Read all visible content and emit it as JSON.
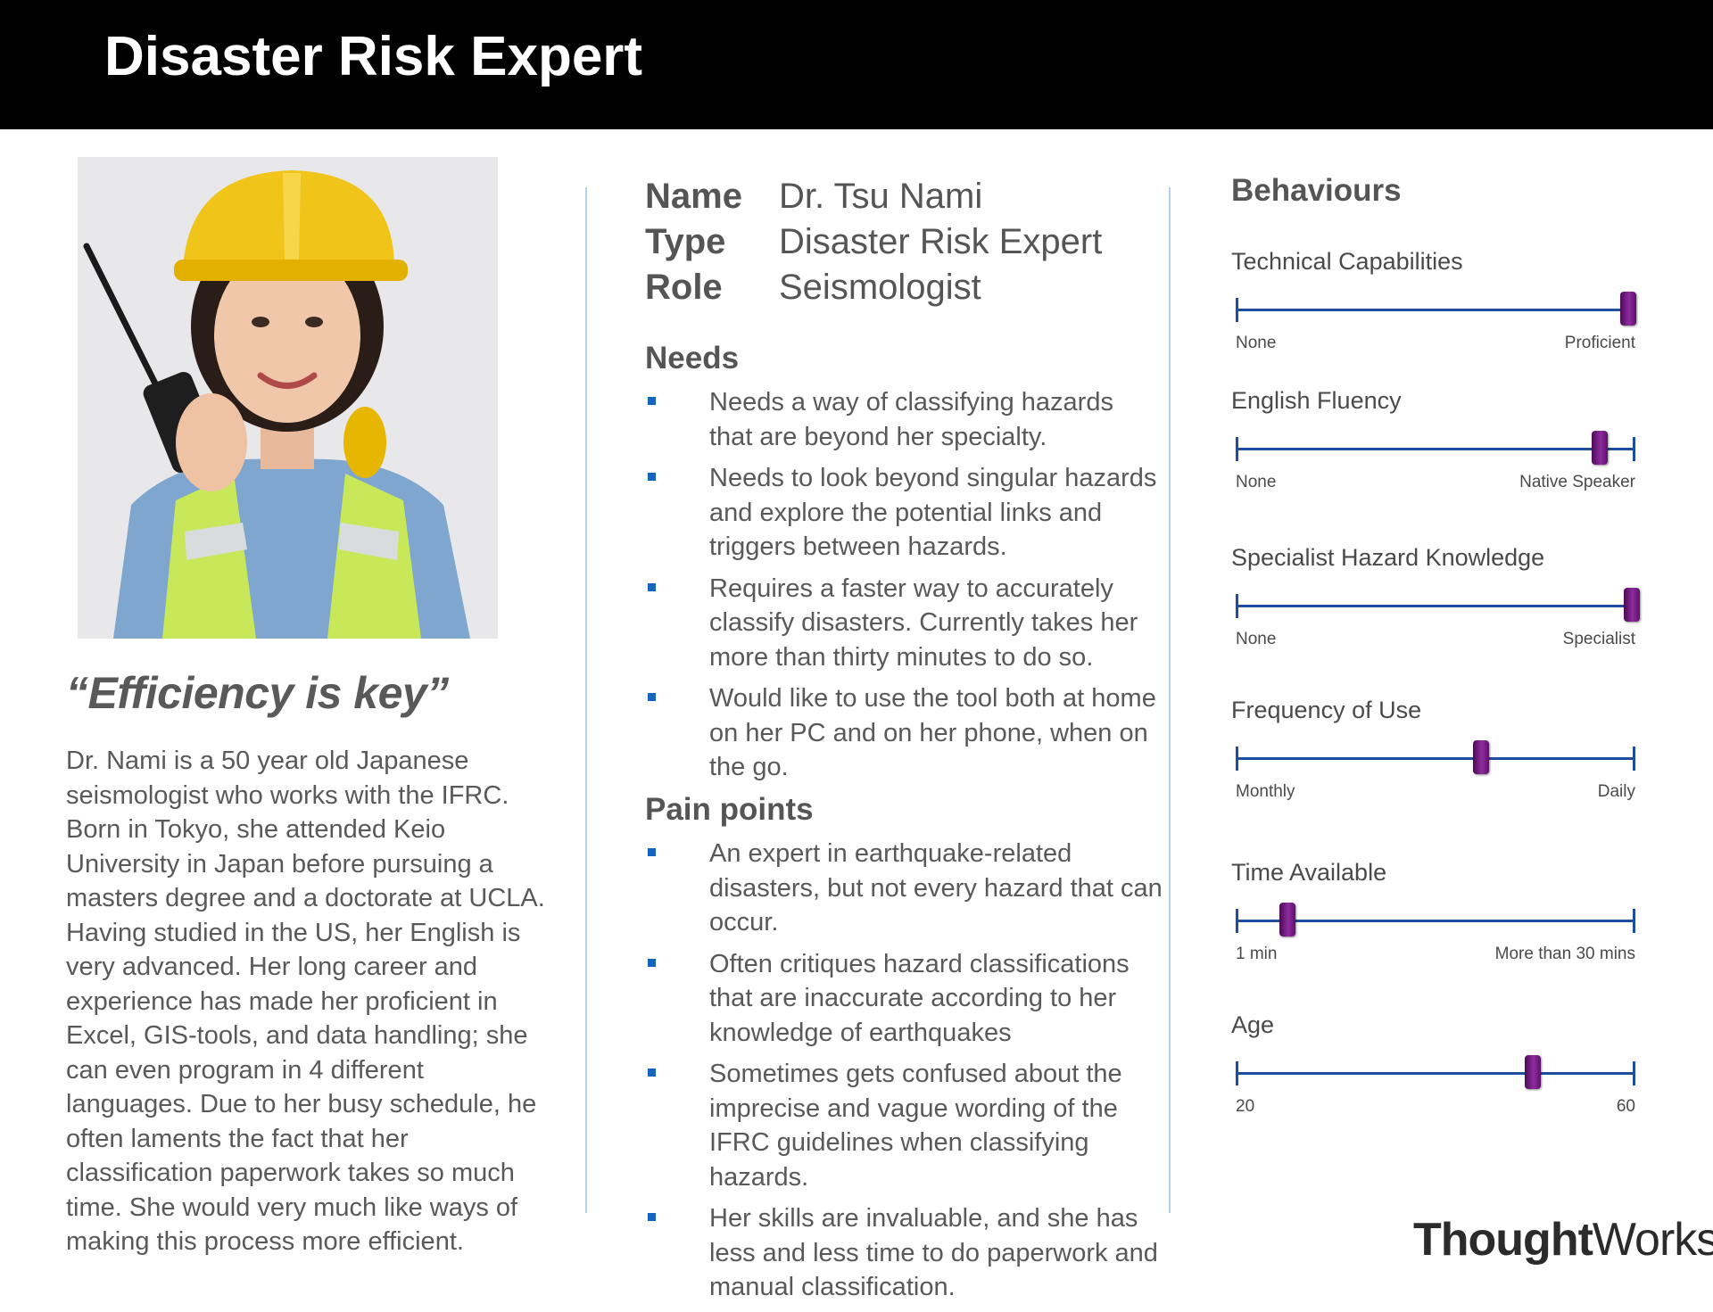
{
  "header": {
    "title": "Disaster Risk Expert"
  },
  "persona": {
    "quote": "“Efficiency is key”",
    "bio": "Dr. Nami is a 50 year old Japanese seismologist who works with the IFRC. Born in Tokyo, she attended Keio University in Japan before pursuing a masters degree and a doctorate at UCLA. Having studied in the US, her English is very advanced. Her long career and experience has made her proficient in Excel, GIS-tools, and data handling; she can even program in 4 different languages. Due to her busy schedule, he often laments the fact that her classification paperwork takes so much time. She would very much like ways of making this process more efficient."
  },
  "attributes": [
    {
      "label": "Name",
      "value": "Dr. Tsu Nami"
    },
    {
      "label": "Type",
      "value": "Disaster Risk Expert"
    },
    {
      "label": "Role",
      "value": "Seismologist"
    }
  ],
  "needs": {
    "title": "Needs",
    "items": [
      "Needs a way of classifying hazards that are beyond her specialty.",
      "Needs to look beyond singular hazards and explore the potential links and triggers between hazards.",
      "Requires a faster way to accurately classify disasters. Currently takes her more than thirty minutes to do so.",
      "Would like to use the tool both at home on her PC and on her phone, when on the go."
    ]
  },
  "pain_points": {
    "title": "Pain points",
    "items": [
      "An expert in earthquake-related disasters, but not every hazard that can occur.",
      "Often critiques hazard classifications that are inaccurate according to her knowledge of earthquakes",
      "Sometimes gets confused about the imprecise and vague wording of the IFRC guidelines when classifying hazards.",
      "Her skills are invaluable, and she has less and less time to do paperwork and manual classification."
    ]
  },
  "behaviours": {
    "title": "Behaviours",
    "scales": [
      {
        "label": "Technical Capabilities",
        "min_label": "None",
        "max_label": "Proficient",
        "value": 0.99
      },
      {
        "label": "English Fluency",
        "min_label": "None",
        "max_label": "Native Speaker",
        "value": 0.92
      },
      {
        "label": "Specialist Hazard Knowledge",
        "min_label": "None",
        "max_label": "Specialist",
        "value": 1.0
      },
      {
        "label": "Frequency of Use",
        "min_label": "Monthly",
        "max_label": "Daily",
        "value": 0.62
      },
      {
        "label": "Time Available",
        "min_label": "1 min",
        "max_label": "More than 30 mins",
        "value": 0.13
      },
      {
        "label": "Age",
        "min_label": "20",
        "max_label": "60",
        "value": 50
      }
    ]
  },
  "logo": {
    "bold": "Thought",
    "light": "Works",
    "mark": "®"
  },
  "colors": {
    "header_bg": "#000000",
    "bullet": "#1565c0",
    "track": "#1f4e9e",
    "knob": "#7a1f8a",
    "divider": "#b7d0ea"
  }
}
